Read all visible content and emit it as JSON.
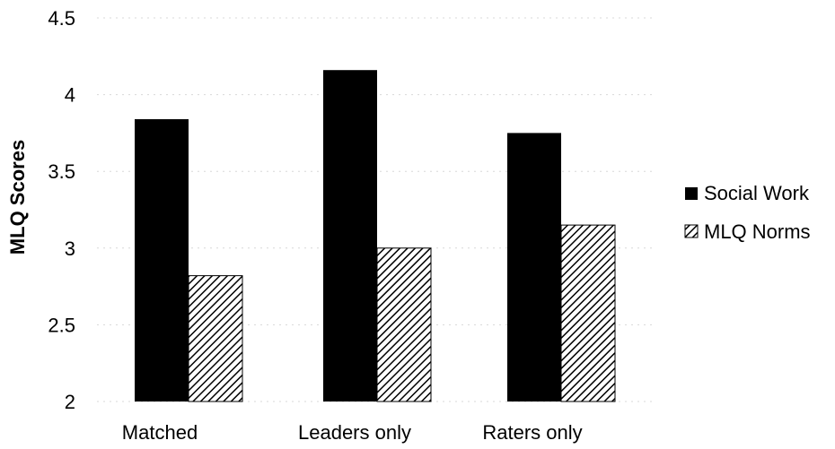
{
  "chart_data": {
    "type": "bar",
    "title": "",
    "xlabel": "",
    "ylabel": "MLQ Scores",
    "categories": [
      "Matched",
      "Leaders only",
      "Raters only"
    ],
    "ylim": [
      2,
      4.5
    ],
    "yticks": [
      2,
      2.5,
      3,
      3.5,
      4,
      4.5
    ],
    "ytick_labels": [
      "2",
      "2.5",
      "3",
      "3.5",
      "4",
      "4.5"
    ],
    "series": [
      {
        "name": "Social Work",
        "values": [
          3.84,
          4.16,
          3.75
        ],
        "fill": "solid",
        "color": "#000000"
      },
      {
        "name": "MLQ Norms",
        "values": [
          2.82,
          3.0,
          3.15
        ],
        "fill": "diagonal-hatch",
        "color": "#000000"
      }
    ],
    "legend_position": "right",
    "grid": "faint horizontal"
  }
}
